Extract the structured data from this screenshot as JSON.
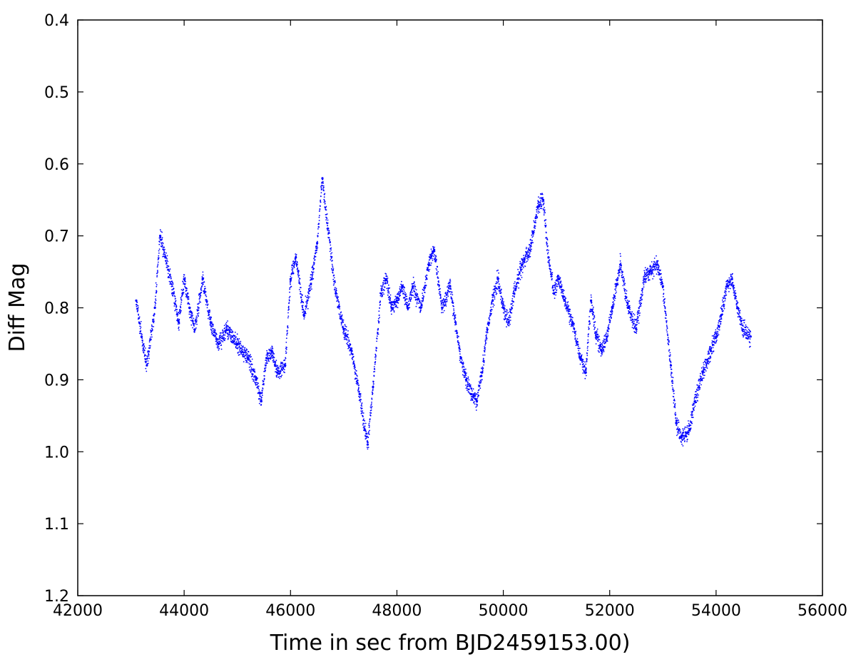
{
  "chart_data": {
    "type": "scatter",
    "xlabel": "Time in sec from BJD2459153.00)",
    "ylabel": "Diff Mag",
    "xlim": [
      42000,
      56000
    ],
    "ylim": [
      0.4,
      1.2
    ],
    "y_inverted": true,
    "x_ticks": [
      42000,
      44000,
      46000,
      48000,
      50000,
      52000,
      54000,
      56000
    ],
    "x_tick_labels": [
      "42000",
      "44000",
      "46000",
      "48000",
      "50000",
      "52000",
      "54000",
      "56000"
    ],
    "y_ticks": [
      0.4,
      0.5,
      0.6,
      0.7,
      0.8,
      0.9,
      1.0,
      1.1,
      1.2
    ],
    "y_tick_labels": [
      "0.4",
      "0.5",
      "0.6",
      "0.7",
      "0.8",
      "0.9",
      "1.0",
      "1.1",
      "1.2"
    ],
    "grid": false,
    "marker_color": "#0000ff",
    "series": [
      {
        "x": [
          43100,
          43200,
          43300,
          43450,
          43550,
          43650,
          43800,
          43900,
          44000,
          44100,
          44200,
          44350,
          44500,
          44650,
          44800,
          45000,
          45200,
          45350,
          45450,
          45550,
          45650,
          45750,
          45900,
          46000,
          46100,
          46250,
          46400,
          46500,
          46600,
          46700,
          46850,
          47000,
          47150,
          47300,
          47400,
          47450,
          47550,
          47700,
          47800,
          47900,
          48000,
          48100,
          48200,
          48300,
          48450,
          48600,
          48700,
          48850,
          49000,
          49100,
          49200,
          49300,
          49400,
          49500,
          49600,
          49700,
          49800,
          49900,
          50000,
          50100,
          50200,
          50350,
          50500,
          50650,
          50750,
          50850,
          50950,
          51050,
          51150,
          51300,
          51450,
          51550,
          51650,
          51750,
          51850,
          51950,
          52050,
          52200,
          52350,
          52500,
          52650,
          52750,
          52900,
          53000,
          53150,
          53250,
          53350,
          53500,
          53600,
          53750,
          53900,
          54000,
          54100,
          54200,
          54300,
          54400,
          54500,
          54650
        ],
        "y": [
          0.79,
          0.84,
          0.88,
          0.8,
          0.7,
          0.73,
          0.78,
          0.82,
          0.76,
          0.8,
          0.83,
          0.76,
          0.82,
          0.85,
          0.83,
          0.85,
          0.87,
          0.9,
          0.93,
          0.87,
          0.86,
          0.89,
          0.88,
          0.76,
          0.73,
          0.81,
          0.76,
          0.71,
          0.62,
          0.69,
          0.78,
          0.83,
          0.86,
          0.92,
          0.97,
          0.99,
          0.91,
          0.78,
          0.76,
          0.8,
          0.79,
          0.77,
          0.8,
          0.77,
          0.8,
          0.74,
          0.72,
          0.8,
          0.77,
          0.82,
          0.87,
          0.9,
          0.92,
          0.93,
          0.89,
          0.83,
          0.79,
          0.76,
          0.8,
          0.82,
          0.78,
          0.74,
          0.72,
          0.66,
          0.65,
          0.73,
          0.78,
          0.76,
          0.79,
          0.82,
          0.87,
          0.89,
          0.79,
          0.84,
          0.86,
          0.84,
          0.8,
          0.74,
          0.8,
          0.83,
          0.76,
          0.75,
          0.74,
          0.77,
          0.88,
          0.96,
          0.98,
          0.97,
          0.93,
          0.89,
          0.86,
          0.84,
          0.81,
          0.77,
          0.76,
          0.8,
          0.83,
          0.84
        ]
      }
    ]
  }
}
